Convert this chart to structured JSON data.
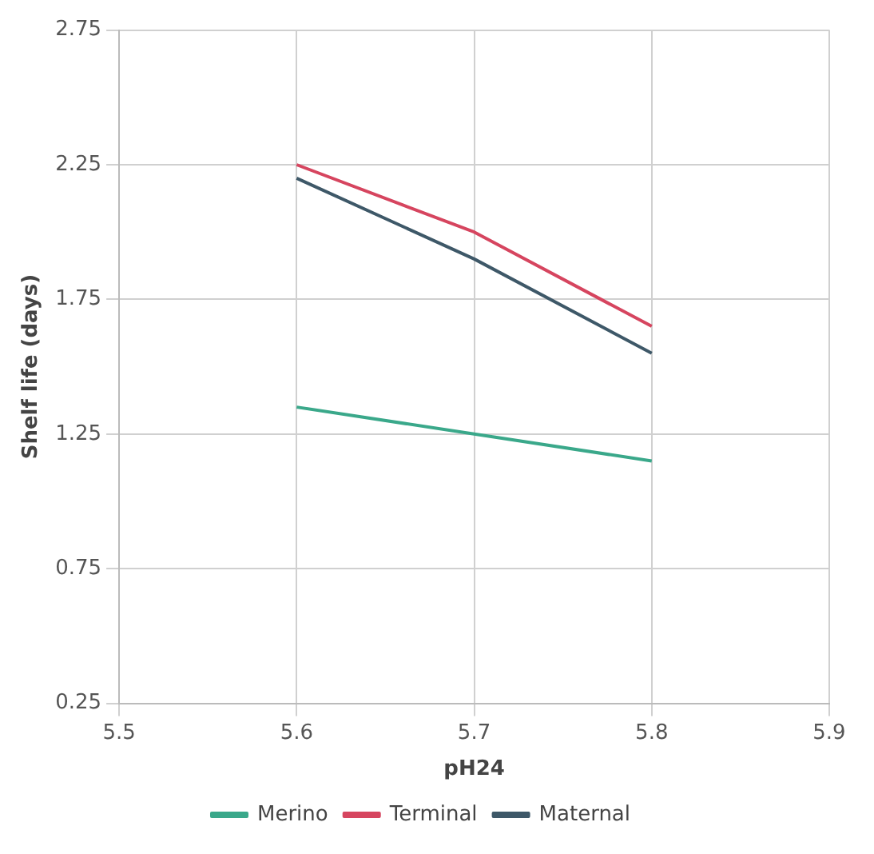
{
  "chart_data": {
    "type": "line",
    "xlabel": "pH24",
    "ylabel": "Shelf life (days)",
    "x": [
      5.6,
      5.7,
      5.8
    ],
    "series": [
      {
        "name": "Merino",
        "color": "#3aa88a",
        "values": [
          1.35,
          1.25,
          1.15
        ]
      },
      {
        "name": "Terminal",
        "color": "#d6455f",
        "values": [
          2.25,
          2.0,
          1.65
        ]
      },
      {
        "name": "Maternal",
        "color": "#3e5868",
        "values": [
          2.2,
          1.9,
          1.55
        ]
      }
    ],
    "xlim": [
      5.5,
      5.9
    ],
    "xticks": [
      5.5,
      5.6,
      5.7,
      5.8,
      5.9
    ],
    "ylim": [
      0.25,
      2.75
    ],
    "yticks": [
      0.25,
      0.75,
      1.25,
      1.75,
      2.25,
      2.75
    ],
    "grid": true,
    "legend": "bottom",
    "marker": "none",
    "line_style": "solid"
  }
}
